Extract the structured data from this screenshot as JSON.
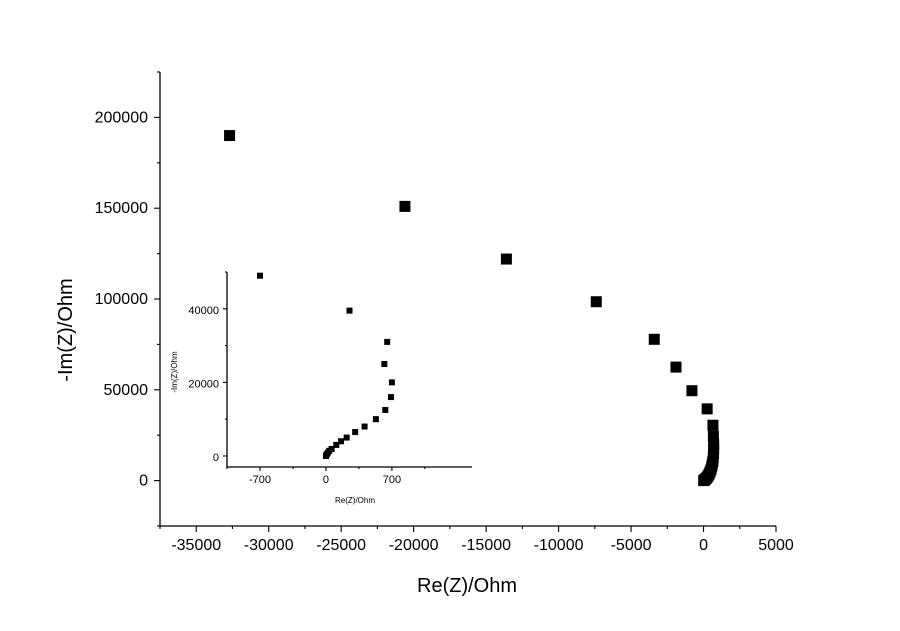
{
  "chart_data": [
    {
      "type": "scatter",
      "title": "",
      "xlabel": "Re(Z)/Ohm",
      "ylabel": "-Im(Z)/Ohm",
      "xlim": [
        -37500,
        5000
      ],
      "ylim": [
        -25000,
        225000
      ],
      "x_ticks": [
        -35000,
        -30000,
        -25000,
        -20000,
        -15000,
        -10000,
        -5000,
        0,
        5000
      ],
      "y_ticks": [
        0,
        50000,
        100000,
        150000,
        200000
      ],
      "grid": false,
      "marker": "square",
      "color": "#000000",
      "series": [
        {
          "points": [
            [
              -32700,
              190000
            ],
            [
              -20600,
              151000
            ],
            [
              -13600,
              122000
            ],
            [
              -7400,
              98500
            ],
            [
              -3400,
              77800
            ],
            [
              -1900,
              62500
            ],
            [
              -800,
              49500
            ],
            [
              250,
              39500
            ],
            [
              650,
              30500
            ],
            [
              680,
              24500
            ],
            [
              700,
              20000
            ],
            [
              700,
              17500
            ],
            [
              690,
              15000
            ],
            [
              670,
              12500
            ],
            [
              640,
              10500
            ],
            [
              600,
              9000
            ],
            [
              560,
              7500
            ],
            [
              510,
              6000
            ],
            [
              450,
              4800
            ],
            [
              390,
              3700
            ],
            [
              320,
              2700
            ],
            [
              250,
              1900
            ],
            [
              180,
              1200
            ],
            [
              110,
              600
            ],
            [
              50,
              200
            ],
            [
              10,
              0
            ]
          ]
        }
      ]
    },
    {
      "type": "scatter",
      "title": "",
      "xlabel": "Re(Z)/Ohm",
      "ylabel": "-Im(Z)/Ohm",
      "xlim": [
        -1050,
        1550
      ],
      "ylim": [
        -3000,
        50000
      ],
      "x_ticks": [
        -700,
        0,
        700
      ],
      "y_ticks": [
        0,
        20000,
        40000
      ],
      "grid": false,
      "marker": "square",
      "color": "#000000",
      "series": [
        {
          "points": [
            [
              -700,
              49000
            ],
            [
              250,
              39500
            ],
            [
              650,
              31000
            ],
            [
              620,
              25000
            ],
            [
              700,
              20000
            ],
            [
              690,
              16000
            ],
            [
              630,
              12500
            ],
            [
              530,
              10000
            ],
            [
              410,
              8000
            ],
            [
              310,
              6500
            ],
            [
              220,
              5000
            ],
            [
              160,
              4000
            ],
            [
              110,
              3000
            ],
            [
              60,
              1900
            ],
            [
              35,
              1400
            ],
            [
              20,
              900
            ],
            [
              10,
              500
            ],
            [
              3,
              200
            ],
            [
              0,
              0
            ]
          ]
        }
      ]
    }
  ]
}
